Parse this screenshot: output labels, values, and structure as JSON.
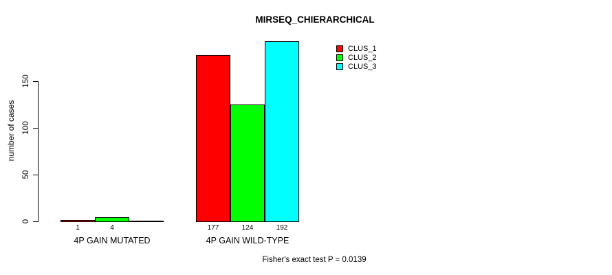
{
  "chart_data": {
    "type": "bar",
    "title": "MIRSEQ_CHIERARCHICAL",
    "ylabel": "number of cases",
    "xlabel": "",
    "yticks": [
      0,
      50,
      100,
      150
    ],
    "ylim": [
      0,
      196
    ],
    "grid": false,
    "legend_position": "top-right",
    "series": [
      {
        "name": "CLUS_1",
        "color": "#ff0000"
      },
      {
        "name": "CLUS_2",
        "color": "#00ff00"
      },
      {
        "name": "CLUS_3",
        "color": "#00ffff"
      }
    ],
    "groups": [
      {
        "label": "4P GAIN MUTATED",
        "values": [
          1,
          4,
          0
        ],
        "bar_labels": [
          "1",
          "4",
          ""
        ]
      },
      {
        "label": "4P GAIN WILD-TYPE",
        "values": [
          177,
          124,
          192
        ],
        "bar_labels": [
          "177",
          "124",
          "192"
        ]
      }
    ],
    "annotation": "Fisher's exact test P = 0.0139"
  }
}
